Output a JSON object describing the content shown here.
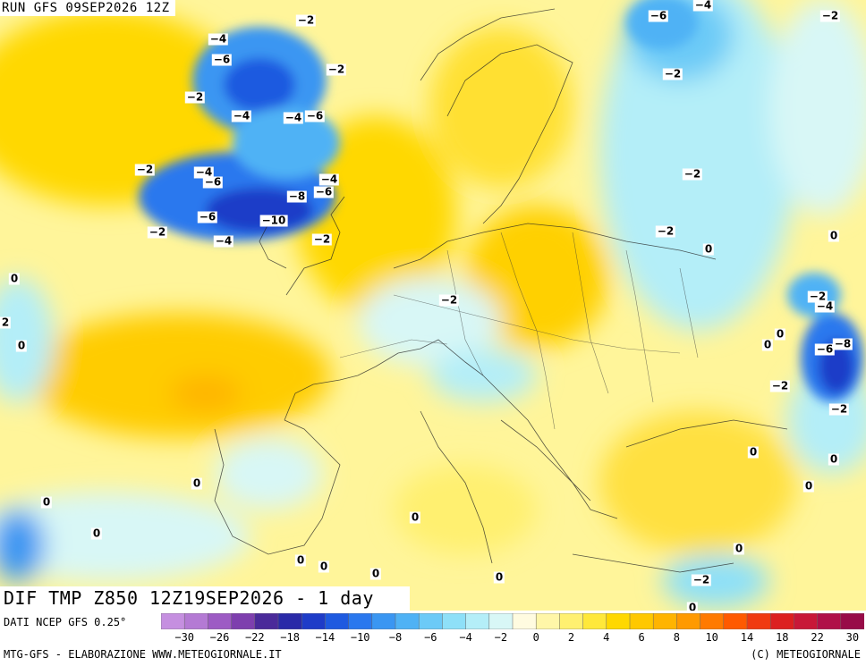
{
  "header": {
    "run_label": "RUN GFS 09SEP2026 12Z"
  },
  "field": {
    "label": "DIF TMP Z850 12Z19SEP2026 - 1 day"
  },
  "footer": {
    "source": "DATI NCEP GFS 0.25°",
    "credit_left": "MTG-GFS - ELABORAZIONE WWW.METEOGIORNALE.IT",
    "credit_right": "(C) METEOGIORNALE"
  },
  "legend": {
    "colors": [
      "#c58fe0",
      "#b47ad4",
      "#9d5bc4",
      "#7e3fae",
      "#4a2a9a",
      "#2a2aa8",
      "#1e3cc8",
      "#1e5ae0",
      "#2a78ee",
      "#3a96f2",
      "#4fb2f5",
      "#6ccaf7",
      "#8ee0f8",
      "#b4eef8",
      "#d8f7f6",
      "#fffbe0",
      "#fff6a8",
      "#fff070",
      "#ffe83a",
      "#ffd800",
      "#ffc800",
      "#ffb400",
      "#ff9a00",
      "#ff7a00",
      "#ff5a00",
      "#f03a10",
      "#dc2020",
      "#c81838",
      "#b01048",
      "#980c48"
    ],
    "tick_labels": [
      "−30",
      "−26",
      "−22",
      "−18",
      "−14",
      "−10",
      "−8",
      "−6",
      "−4",
      "−2",
      "0",
      "2",
      "4",
      "6",
      "8",
      "10",
      "14",
      "18",
      "22",
      "30"
    ],
    "tick_values": [
      -30,
      -26,
      -22,
      -18,
      -14,
      -10,
      -8,
      -6,
      -4,
      -2,
      0,
      2,
      4,
      6,
      8,
      10,
      14,
      18,
      22,
      30
    ]
  },
  "contour_labels": [
    {
      "text": "−2"
    },
    {
      "text": "−4"
    },
    {
      "text": "−6"
    },
    {
      "text": "−2"
    },
    {
      "text": "−2"
    },
    {
      "text": "−4"
    },
    {
      "text": "−4"
    },
    {
      "text": "−6"
    },
    {
      "text": "−2"
    },
    {
      "text": "−4"
    },
    {
      "text": "−6"
    },
    {
      "text": "−4"
    },
    {
      "text": "−6"
    },
    {
      "text": "−8"
    },
    {
      "text": "−6"
    },
    {
      "text": "−10"
    },
    {
      "text": "−2"
    },
    {
      "text": "−4"
    },
    {
      "text": "−2"
    },
    {
      "text": "0"
    },
    {
      "text": "2"
    },
    {
      "text": "0"
    },
    {
      "text": "−2"
    },
    {
      "text": "−6"
    },
    {
      "text": "−4"
    },
    {
      "text": "−2"
    },
    {
      "text": "−2"
    },
    {
      "text": "−2"
    },
    {
      "text": "−2"
    },
    {
      "text": "0"
    },
    {
      "text": "0"
    },
    {
      "text": "−2"
    },
    {
      "text": "−4"
    },
    {
      "text": "0"
    },
    {
      "text": "0"
    },
    {
      "text": "−6"
    },
    {
      "text": "−8"
    },
    {
      "text": "−2"
    },
    {
      "text": "−2"
    },
    {
      "text": "0"
    },
    {
      "text": "0"
    },
    {
      "text": "0"
    },
    {
      "text": "0"
    },
    {
      "text": "0"
    },
    {
      "text": "0"
    },
    {
      "text": "0"
    },
    {
      "text": "0"
    },
    {
      "text": "0"
    },
    {
      "text": "0"
    },
    {
      "text": "0"
    },
    {
      "text": "−2"
    },
    {
      "text": "0"
    },
    {
      "text": "0"
    }
  ]
}
